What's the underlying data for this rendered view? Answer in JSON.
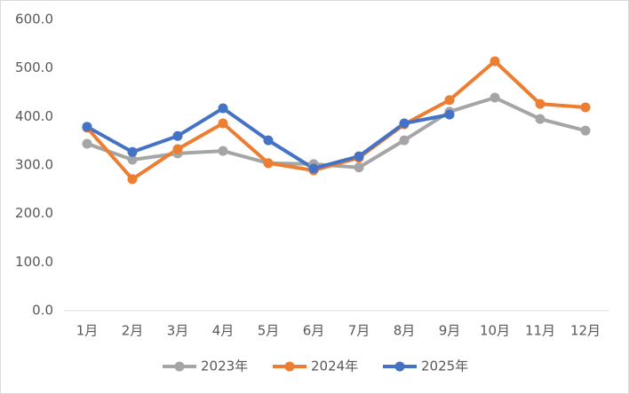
{
  "chart_data": {
    "type": "line",
    "categories": [
      "1月",
      "2月",
      "3月",
      "4月",
      "5月",
      "6月",
      "7月",
      "8月",
      "9月",
      "10月",
      "11月",
      "12月"
    ],
    "series": [
      {
        "name": "2023年",
        "color": "#a5a5a5",
        "values": [
          344,
          311,
          324,
          329,
          304,
          302,
          295,
          351,
          410,
          439,
          395,
          371
        ]
      },
      {
        "name": "2024年",
        "color": "#ed7d31",
        "values": [
          377,
          271,
          333,
          386,
          304,
          289,
          315,
          384,
          434,
          514,
          426,
          419
        ]
      },
      {
        "name": "2025年",
        "color": "#4472c4",
        "values": [
          379,
          327,
          360,
          417,
          351,
          293,
          318,
          386,
          404,
          null,
          null,
          null
        ]
      }
    ],
    "ylim": [
      0,
      600
    ],
    "yticks": [
      {
        "value": 0,
        "label": "0.0"
      },
      {
        "value": 100,
        "label": "100.0"
      },
      {
        "value": 200,
        "label": "200.0"
      },
      {
        "value": 300,
        "label": "300.0"
      },
      {
        "value": 400,
        "label": "400.0"
      },
      {
        "value": 500,
        "label": "500.0"
      },
      {
        "value": 600,
        "label": "600.0"
      }
    ],
    "grid": false,
    "legend": "bottom"
  }
}
